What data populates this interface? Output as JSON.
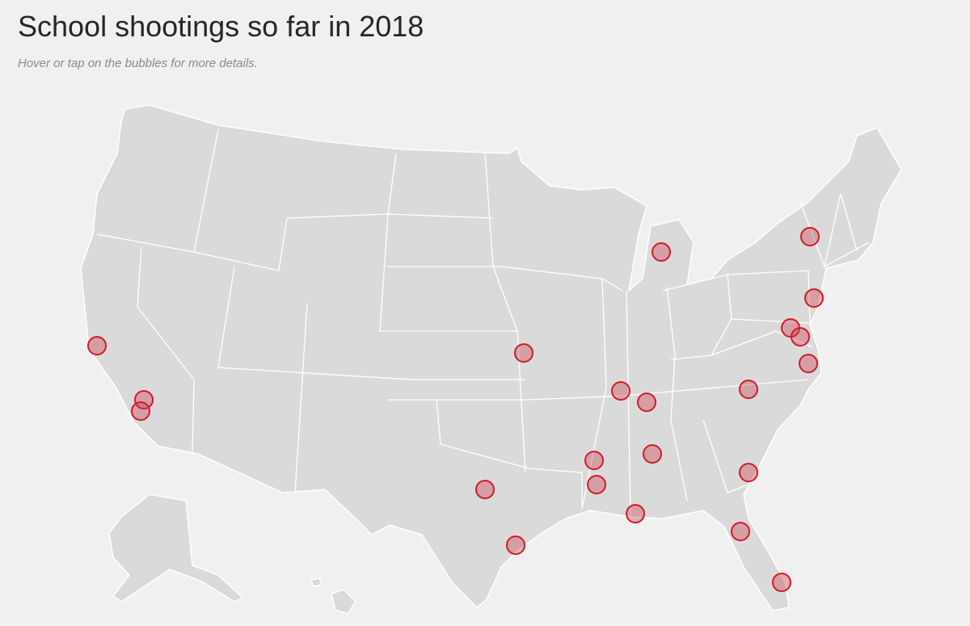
{
  "header": {
    "title": "School shootings so far in 2018",
    "subtitle": "Hover or tap on the bubbles for more details."
  }
}
